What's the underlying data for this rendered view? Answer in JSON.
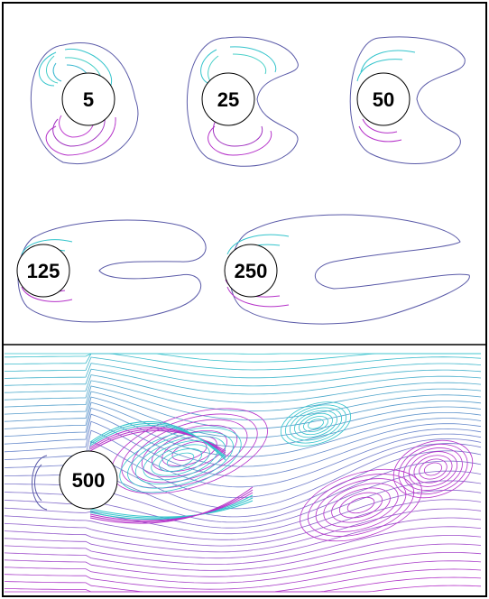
{
  "panels": [
    {
      "label": "5"
    },
    {
      "label": "25"
    },
    {
      "label": "50"
    },
    {
      "label": "125"
    },
    {
      "label": "250"
    },
    {
      "label": "500"
    }
  ],
  "colors": {
    "outer_contour": "#5a5aa8",
    "upper_contour": "#33c4cc",
    "lower_contour": "#b531c9",
    "cylinder_fill": "#ffffff",
    "cylinder_stroke": "#000000",
    "frame": "#000000"
  }
}
